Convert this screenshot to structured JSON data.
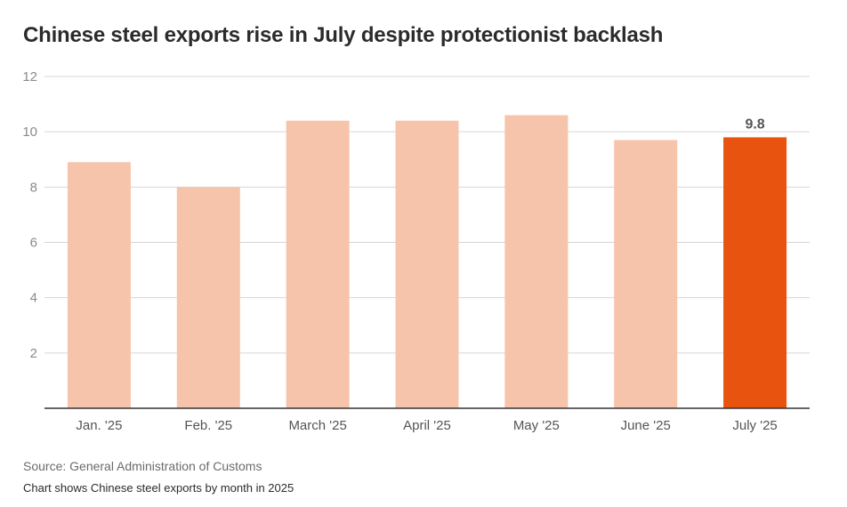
{
  "title": "Chinese steel exports rise in July despite protectionist backlash",
  "source": "Source: General Administration of Customs",
  "note": "Chart shows Chinese steel exports by month in 2025",
  "colors": {
    "bar": "#f5c4ab",
    "highlight": "#e8540f",
    "grid": "#d6d6d6",
    "axis": "#333333"
  },
  "chart_data": {
    "type": "bar",
    "categories": [
      "Jan. '25",
      "Feb. '25",
      "March '25",
      "April '25",
      "May '25",
      "June '25",
      "July '25"
    ],
    "values": [
      8.9,
      8.0,
      10.4,
      10.4,
      10.6,
      9.7,
      9.8
    ],
    "highlight_index": 6,
    "data_labels": [
      {
        "index": 6,
        "text": "9.8"
      }
    ],
    "yticks": [
      2,
      4,
      6,
      8,
      10,
      12
    ],
    "ylim": [
      0,
      12
    ],
    "grid": true,
    "xlabel": "",
    "ylabel": ""
  }
}
